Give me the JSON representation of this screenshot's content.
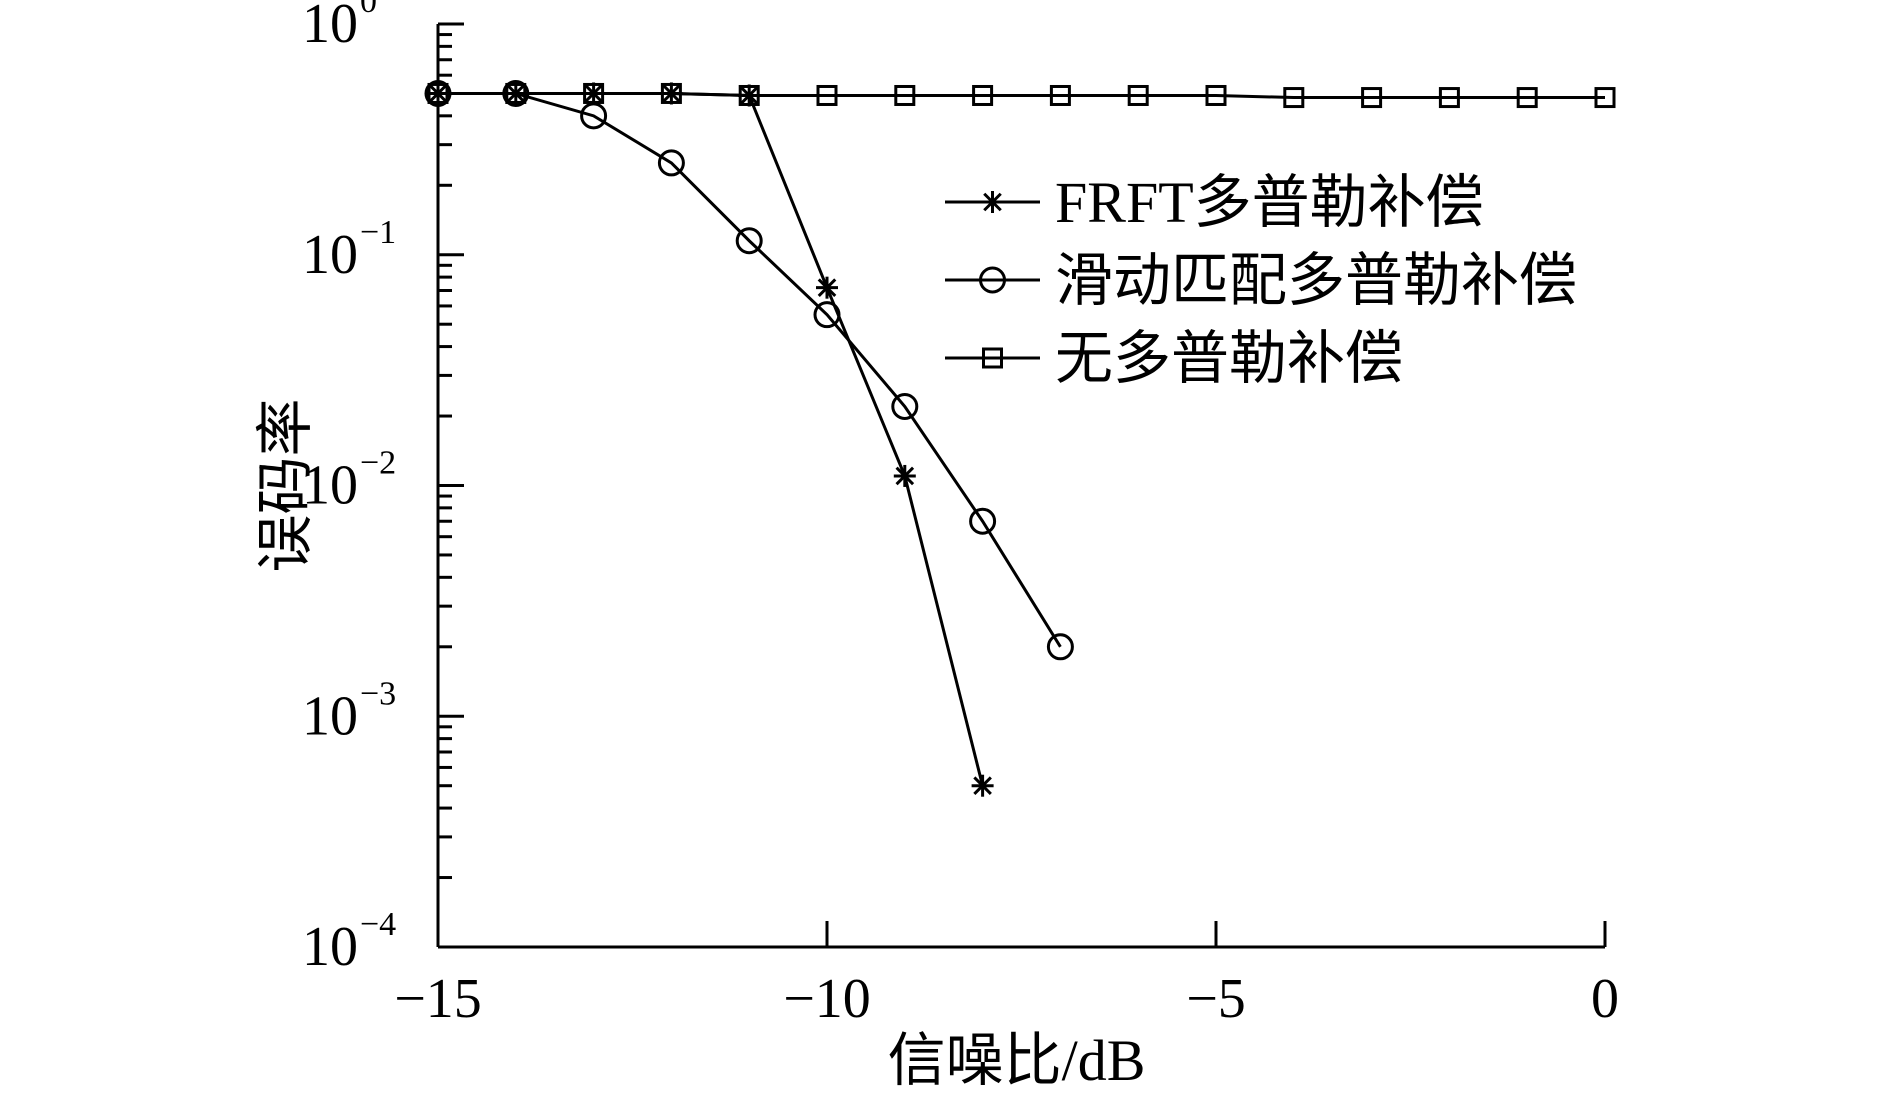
{
  "chart_data": {
    "type": "line",
    "xlabel": "信噪比/dB",
    "ylabel": "误码率",
    "xlim": [
      -15,
      0
    ],
    "ylim": [
      0.0001,
      1
    ],
    "yscale": "log",
    "x_ticks": [
      -15,
      -10,
      -5,
      0
    ],
    "x_tick_labels": [
      "−15",
      "−10",
      "−5",
      "0"
    ],
    "y_tick_labels": [
      {
        "base": "10",
        "exp": "0",
        "value": 1
      },
      {
        "base": "10",
        "exp": "−1",
        "value": 0.1
      },
      {
        "base": "10",
        "exp": "−2",
        "value": 0.01
      },
      {
        "base": "10",
        "exp": "−3",
        "value": 0.001
      },
      {
        "base": "10",
        "exp": "−4",
        "value": 0.0001
      }
    ],
    "grid": false,
    "legend_position": "top-right",
    "series": [
      {
        "name": "FRFT多普勒补偿",
        "marker": "asterisk",
        "x": [
          -15,
          -14,
          -13,
          -12,
          -11,
          -10,
          -9,
          -8
        ],
        "y": [
          0.5,
          0.5,
          0.5,
          0.5,
          0.49,
          0.072,
          0.011,
          0.0005
        ]
      },
      {
        "name": "滑动匹配多普勒补偿",
        "marker": "circle",
        "x": [
          -15,
          -14,
          -13,
          -12,
          -11,
          -10,
          -9,
          -8,
          -7
        ],
        "y": [
          0.5,
          0.5,
          0.4,
          0.25,
          0.115,
          0.055,
          0.022,
          0.007,
          0.002
        ]
      },
      {
        "name": "无多普勒补偿",
        "marker": "square",
        "x": [
          -15,
          -14,
          -13,
          -12,
          -11,
          -10,
          -9,
          -8,
          -7,
          -6,
          -5,
          -4,
          -3,
          -2,
          -1,
          0
        ],
        "y": [
          0.5,
          0.5,
          0.5,
          0.5,
          0.49,
          0.49,
          0.49,
          0.49,
          0.49,
          0.49,
          0.49,
          0.48,
          0.48,
          0.48,
          0.48,
          0.48
        ]
      }
    ]
  }
}
